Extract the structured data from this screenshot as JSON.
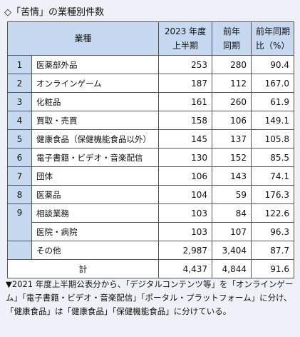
{
  "header": {
    "title": "◇「苦情」の業種別件数"
  },
  "table": {
    "columns": [
      [
        "業種"
      ],
      [
        "2023 年度",
        "上半期"
      ],
      [
        "前年",
        "同期"
      ],
      [
        "前年同期",
        "比（%）"
      ]
    ],
    "rows": [
      [
        "1",
        "医薬部外品",
        "253",
        "280",
        "90.4"
      ],
      [
        "2",
        "オンラインゲーム",
        "187",
        "112",
        "167.0"
      ],
      [
        "3",
        "化粧品",
        "161",
        "260",
        "61.9"
      ],
      [
        "4",
        "買取・売買",
        "158",
        "106",
        "149.1"
      ],
      [
        "5",
        "健康食品（保健機能食品以外）",
        "145",
        "137",
        "105.8"
      ],
      [
        "6",
        "電子書籍・ビデオ・音楽配信",
        "130",
        "152",
        "85.5"
      ],
      [
        "7",
        "団体",
        "106",
        "143",
        "74.1"
      ],
      [
        "8",
        "医薬品",
        "104",
        "59",
        "176.3"
      ],
      [
        "9",
        "相談業務",
        "103",
        "84",
        "122.6"
      ],
      [
        null,
        "医院・病院",
        "103",
        "107",
        "96.3"
      ],
      [
        null,
        "その他",
        "2,987",
        "3,404",
        "87.7"
      ]
    ],
    "total": [
      "計",
      "4,437",
      "4,844",
      "91.6"
    ]
  },
  "note": "▼2021 年度上半期公表分から、「デジタルコンテンツ等」を「オンラインゲーム」「電子書籍・ビデオ・音楽配信」「ポータル・プラットフォーム」に分け、「健康食品」は「健康食品」「保健機能食品」に分けている。"
}
